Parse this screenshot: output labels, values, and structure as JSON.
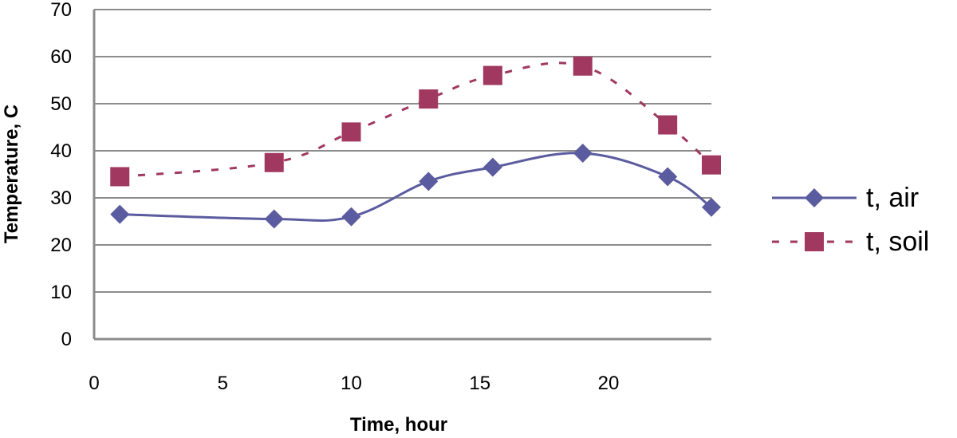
{
  "chart_data": {
    "type": "line",
    "xlabel": "Time, hour",
    "ylabel": "Temperature, C",
    "xlim": [
      0,
      24
    ],
    "ylim": [
      0,
      70
    ],
    "xticks": [
      0,
      5,
      10,
      15,
      20
    ],
    "yticks": [
      0,
      10,
      20,
      30,
      40,
      50,
      60,
      70
    ],
    "grid": "horizontal",
    "legend_position": "right",
    "series": [
      {
        "name": "t, air",
        "color": "#5b5b9f",
        "marker": "diamond",
        "line_style": "solid",
        "smooth": true,
        "points": [
          {
            "x": 1,
            "y": 26.5
          },
          {
            "x": 7,
            "y": 25.5
          },
          {
            "x": 10,
            "y": 26
          },
          {
            "x": 13,
            "y": 33.5
          },
          {
            "x": 15.5,
            "y": 36.5
          },
          {
            "x": 19,
            "y": 39.5
          },
          {
            "x": 22.3,
            "y": 34.5
          },
          {
            "x": 24,
            "y": 28
          }
        ]
      },
      {
        "name": "t, soil",
        "color": "#a0385f",
        "marker": "square",
        "line_style": "dashed",
        "smooth": true,
        "points": [
          {
            "x": 1,
            "y": 34.5
          },
          {
            "x": 7,
            "y": 37.5
          },
          {
            "x": 10,
            "y": 44
          },
          {
            "x": 13,
            "y": 51
          },
          {
            "x": 15.5,
            "y": 56
          },
          {
            "x": 19,
            "y": 58
          },
          {
            "x": 22.3,
            "y": 45.5
          },
          {
            "x": 24,
            "y": 37
          }
        ]
      }
    ]
  }
}
